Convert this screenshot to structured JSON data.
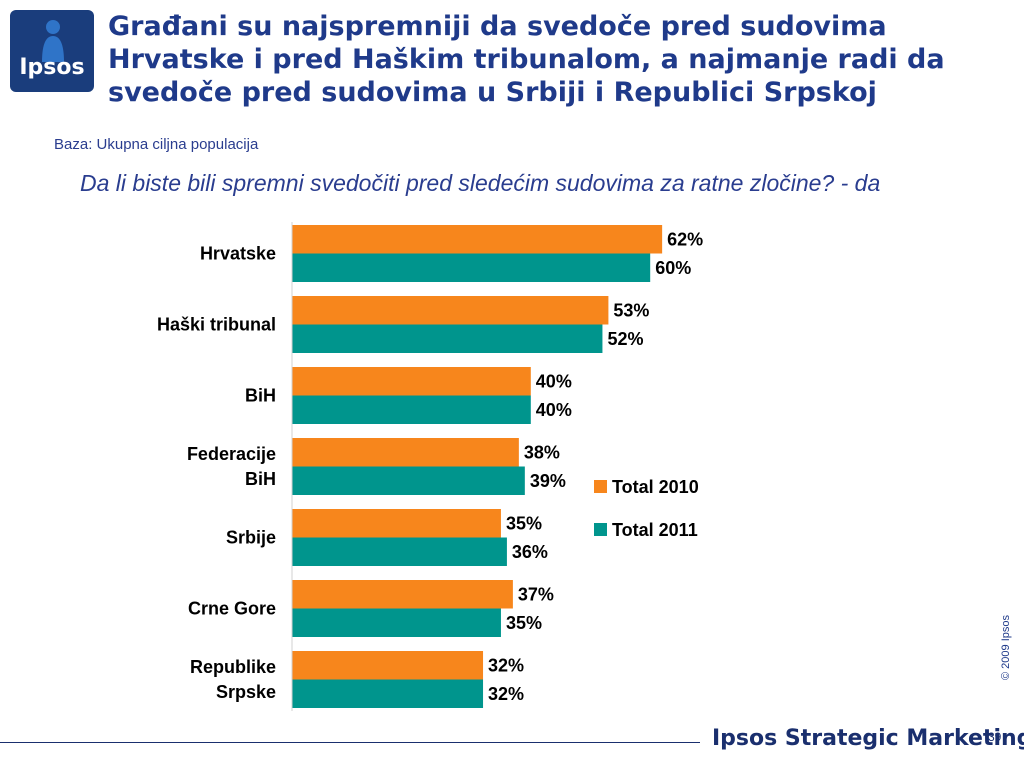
{
  "logo": {
    "text": "Ipsos"
  },
  "title": {
    "lines": [
      "Građani su najspremniji da svedoče pred sudovima",
      "Hrvatske i pred Haškim tribunalom, a najmanje radi da",
      "svedoče pred sudovima u Srbiji i Republici Srpskoj"
    ]
  },
  "base_label": "Baza: Ukupna ciljna populacija",
  "question": "Da li biste bili spremni svedočiti pred sledećim sudovima za ratne zločine? - da",
  "colors": {
    "series_2010": "#f7861c",
    "series_2011": "#00958d",
    "title": "#1f3a8a"
  },
  "chart_data": {
    "type": "bar",
    "orientation": "horizontal",
    "categories": [
      [
        "Hrvatske"
      ],
      [
        "Haški tribunal"
      ],
      [
        "BiH"
      ],
      [
        "Federacije",
        "BiH"
      ],
      [
        "Srbije"
      ],
      [
        "Crne Gore"
      ],
      [
        "Republike",
        "Srpske"
      ]
    ],
    "series": [
      {
        "name": "Total 2010",
        "values": [
          62,
          53,
          40,
          38,
          35,
          37,
          32
        ],
        "labels": [
          "62%",
          "53%",
          "40%",
          "38%",
          "35%",
          "37%",
          "32%"
        ]
      },
      {
        "name": "Total 2011",
        "values": [
          60,
          52,
          40,
          39,
          36,
          35,
          32
        ],
        "labels": [
          "60%",
          "52%",
          "40%",
          "39%",
          "36%",
          "35%",
          "32%"
        ]
      }
    ],
    "xlim": [
      0,
      100
    ],
    "value_unit": "%",
    "legend": "right",
    "grid": false
  },
  "footer": {
    "copyright": "© 2009 Ipsos",
    "brand": "Ipsos Strategic Marketing",
    "page": "39"
  }
}
